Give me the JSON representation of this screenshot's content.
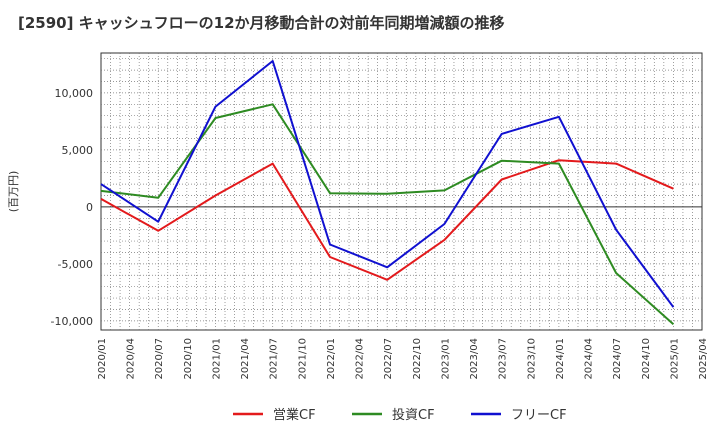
{
  "chart_data": {
    "type": "line",
    "title": "[2590]  キャッシュフローの12か月移動合計の対前年同期増減額の推移",
    "ylabel": "(百万円)",
    "xlabel": "",
    "ylim": [
      -10800,
      13500
    ],
    "y_ticks": [
      -10000,
      -5000,
      0,
      5000,
      10000
    ],
    "y_tick_labels": [
      "-10,000",
      "-5,000",
      "0",
      "5,000",
      "10,000"
    ],
    "x_tick_labels": [
      "2020/01",
      "2020/04",
      "2020/07",
      "2020/10",
      "2021/01",
      "2021/04",
      "2021/07",
      "2021/10",
      "2022/01",
      "2022/04",
      "2022/07",
      "2022/10",
      "2023/01",
      "2023/04",
      "2023/07",
      "2023/10",
      "2024/01",
      "2024/04",
      "2024/07",
      "2024/10",
      "2025/01",
      "2025/04"
    ],
    "grid": true,
    "legend_position": "bottom",
    "series": [
      {
        "name": "営業CF",
        "color": "#e31a1c",
        "points": [
          [
            "2020/01",
            700
          ],
          [
            "2020/07",
            -2100
          ],
          [
            "2021/01",
            1000
          ],
          [
            "2021/07",
            3800
          ],
          [
            "2022/01",
            -4400
          ],
          [
            "2022/07",
            -6400
          ],
          [
            "2023/01",
            -2900
          ],
          [
            "2023/07",
            2400
          ],
          [
            "2024/01",
            4100
          ],
          [
            "2024/07",
            3800
          ],
          [
            "2025/01",
            1600
          ]
        ]
      },
      {
        "name": "投資CF",
        "color": "#2e8b22",
        "points": [
          [
            "2020/01",
            1400
          ],
          [
            "2020/07",
            800
          ],
          [
            "2021/01",
            7800
          ],
          [
            "2021/07",
            9000
          ],
          [
            "2022/01",
            1200
          ],
          [
            "2022/07",
            1150
          ],
          [
            "2023/01",
            1450
          ],
          [
            "2023/07",
            4050
          ],
          [
            "2024/01",
            3800
          ],
          [
            "2024/07",
            -5800
          ],
          [
            "2025/01",
            -10300
          ]
        ]
      },
      {
        "name": "フリーCF",
        "color": "#1010d0",
        "points": [
          [
            "2020/01",
            2000
          ],
          [
            "2020/07",
            -1300
          ],
          [
            "2021/01",
            8800
          ],
          [
            "2021/07",
            12800
          ],
          [
            "2022/01",
            -3300
          ],
          [
            "2022/07",
            -5300
          ],
          [
            "2023/01",
            -1500
          ],
          [
            "2023/07",
            6400
          ],
          [
            "2024/01",
            7900
          ],
          [
            "2024/07",
            -2000
          ],
          [
            "2025/01",
            -8800
          ]
        ]
      }
    ]
  }
}
